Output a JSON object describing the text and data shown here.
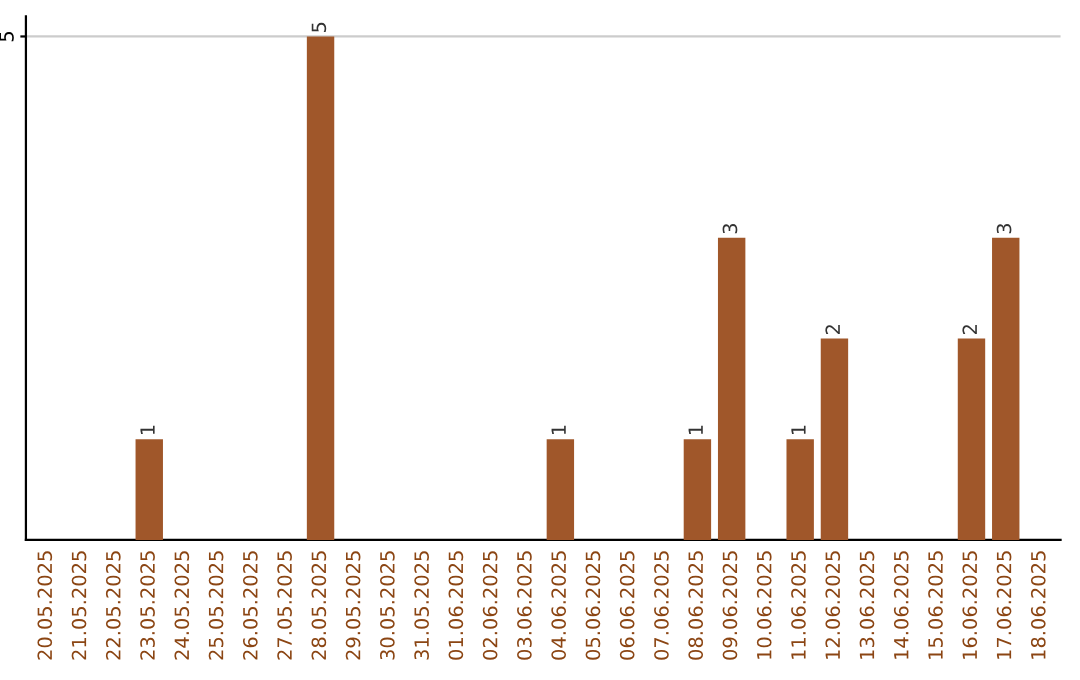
{
  "chart_data": {
    "type": "bar",
    "categories": [
      "20.05.2025",
      "21.05.2025",
      "22.05.2025",
      "23.05.2025",
      "24.05.2025",
      "25.05.2025",
      "26.05.2025",
      "27.05.2025",
      "28.05.2025",
      "29.05.2025",
      "30.05.2025",
      "31.05.2025",
      "01.06.2025",
      "02.06.2025",
      "03.06.2025",
      "04.06.2025",
      "05.06.2025",
      "06.06.2025",
      "07.06.2025",
      "08.06.2025",
      "09.06.2025",
      "10.06.2025",
      "11.06.2025",
      "12.06.2025",
      "13.06.2025",
      "14.06.2025",
      "15.06.2025",
      "16.06.2025",
      "17.06.2025",
      "18.06.2025"
    ],
    "values": [
      0,
      0,
      0,
      1,
      0,
      0,
      0,
      0,
      5,
      0,
      0,
      0,
      0,
      0,
      0,
      1,
      0,
      0,
      0,
      1,
      3,
      0,
      1,
      2,
      0,
      0,
      0,
      2,
      3,
      0
    ],
    "value_labels": [
      null,
      null,
      null,
      "1",
      null,
      null,
      null,
      null,
      "5",
      null,
      null,
      null,
      null,
      null,
      null,
      "1",
      null,
      null,
      null,
      "1",
      "3",
      null,
      "1",
      "2",
      null,
      null,
      null,
      "2",
      "3",
      null
    ],
    "color": "#a0572a",
    "ylim": [
      0,
      5.2
    ],
    "yticks": [
      5
    ],
    "grid": "y"
  }
}
